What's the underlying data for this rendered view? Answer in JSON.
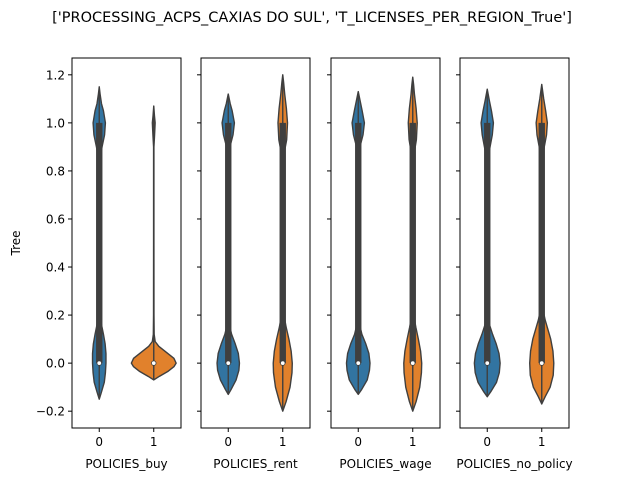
{
  "figure_title": "['PROCESSING_ACPS_CAXIAS DO SUL', 'T_LICENSES_PER_REGION_True']",
  "colors": {
    "class_0": "#3274a1",
    "class_1": "#e1812c",
    "outline": "#3f3f3f"
  },
  "chart_data": {
    "type": "violin",
    "title": "['PROCESSING_ACPS_CAXIAS DO SUL', 'T_LICENSES_PER_REGION_True']",
    "ylabel": "Tree",
    "ylim": [
      -0.27,
      1.27
    ],
    "yticks": [
      -0.2,
      0.0,
      0.2,
      0.4,
      0.6,
      0.8,
      1.0,
      1.2
    ],
    "ytick_labels": [
      "−0.2",
      "0.0",
      "0.2",
      "0.4",
      "0.6",
      "0.8",
      "1.0",
      "1.2"
    ],
    "categories": [
      "0",
      "1"
    ],
    "panels": [
      {
        "xlabel": "POLICIES_buy",
        "violins": [
          {
            "category": "0",
            "min": -0.15,
            "max": 1.15,
            "median": 0.0,
            "q1": 0.0,
            "q3": 1.0,
            "profile": [
              [
                -0.15,
                0.0
              ],
              [
                -0.12,
                0.08
              ],
              [
                -0.08,
                0.18
              ],
              [
                -0.04,
                0.22
              ],
              [
                0.0,
                0.24
              ],
              [
                0.04,
                0.24
              ],
              [
                0.08,
                0.21
              ],
              [
                0.12,
                0.15
              ],
              [
                0.16,
                0.08
              ],
              [
                0.2,
                0.035
              ],
              [
                0.26,
                0.012
              ],
              [
                0.4,
                0.008
              ],
              [
                0.6,
                0.008
              ],
              [
                0.8,
                0.012
              ],
              [
                0.86,
                0.04
              ],
              [
                0.9,
                0.1
              ],
              [
                0.95,
                0.19
              ],
              [
                1.0,
                0.22
              ],
              [
                1.05,
                0.15
              ],
              [
                1.08,
                0.08
              ],
              [
                1.12,
                0.03
              ],
              [
                1.15,
                0.0
              ]
            ]
          },
          {
            "category": "1",
            "min": -0.07,
            "max": 1.07,
            "median": 0.0,
            "q1": 0.0,
            "q3": 0.0,
            "profile": [
              [
                -0.07,
                0.0
              ],
              [
                -0.055,
                0.2
              ],
              [
                -0.035,
                0.5
              ],
              [
                -0.015,
                0.72
              ],
              [
                0.0,
                0.8
              ],
              [
                0.02,
                0.72
              ],
              [
                0.045,
                0.45
              ],
              [
                0.07,
                0.18
              ],
              [
                0.09,
                0.05
              ],
              [
                0.12,
                0.015
              ],
              [
                0.2,
                0.008
              ],
              [
                0.5,
                0.006
              ],
              [
                0.9,
                0.006
              ],
              [
                0.95,
                0.03
              ],
              [
                1.0,
                0.05
              ],
              [
                1.03,
                0.025
              ],
              [
                1.07,
                0.0
              ]
            ]
          }
        ]
      },
      {
        "xlabel": "POLICIES_rent",
        "violins": [
          {
            "category": "0",
            "min": -0.13,
            "max": 1.12,
            "median": 0.0,
            "q1": 0.0,
            "q3": 1.0,
            "profile": [
              [
                -0.13,
                0.0
              ],
              [
                -0.11,
                0.1
              ],
              [
                -0.07,
                0.28
              ],
              [
                -0.03,
                0.38
              ],
              [
                0.0,
                0.4
              ],
              [
                0.04,
                0.36
              ],
              [
                0.08,
                0.25
              ],
              [
                0.12,
                0.12
              ],
              [
                0.16,
                0.04
              ],
              [
                0.2,
                0.015
              ],
              [
                0.3,
                0.008
              ],
              [
                0.6,
                0.008
              ],
              [
                0.85,
                0.015
              ],
              [
                0.9,
                0.06
              ],
              [
                0.95,
                0.17
              ],
              [
                1.0,
                0.22
              ],
              [
                1.05,
                0.14
              ],
              [
                1.08,
                0.07
              ],
              [
                1.12,
                0.0
              ]
            ]
          },
          {
            "category": "1",
            "min": -0.2,
            "max": 1.2,
            "median": 0.0,
            "q1": 0.0,
            "q3": 1.0,
            "profile": [
              [
                -0.2,
                0.0
              ],
              [
                -0.16,
                0.12
              ],
              [
                -0.1,
                0.26
              ],
              [
                -0.04,
                0.33
              ],
              [
                0.0,
                0.34
              ],
              [
                0.05,
                0.3
              ],
              [
                0.1,
                0.22
              ],
              [
                0.15,
                0.12
              ],
              [
                0.19,
                0.06
              ],
              [
                0.24,
                0.03
              ],
              [
                0.35,
                0.02
              ],
              [
                0.6,
                0.02
              ],
              [
                0.8,
                0.025
              ],
              [
                0.88,
                0.06
              ],
              [
                0.93,
                0.14
              ],
              [
                1.0,
                0.17
              ],
              [
                1.06,
                0.13
              ],
              [
                1.12,
                0.07
              ],
              [
                1.17,
                0.03
              ],
              [
                1.2,
                0.0
              ]
            ]
          }
        ]
      },
      {
        "xlabel": "POLICIES_wage",
        "violins": [
          {
            "category": "0",
            "min": -0.13,
            "max": 1.13,
            "median": 0.0,
            "q1": 0.0,
            "q3": 1.0,
            "profile": [
              [
                -0.13,
                0.0
              ],
              [
                -0.11,
                0.12
              ],
              [
                -0.07,
                0.32
              ],
              [
                -0.03,
                0.4
              ],
              [
                0.0,
                0.42
              ],
              [
                0.04,
                0.38
              ],
              [
                0.08,
                0.27
              ],
              [
                0.12,
                0.13
              ],
              [
                0.16,
                0.05
              ],
              [
                0.2,
                0.015
              ],
              [
                0.3,
                0.008
              ],
              [
                0.6,
                0.008
              ],
              [
                0.85,
                0.015
              ],
              [
                0.9,
                0.06
              ],
              [
                0.95,
                0.17
              ],
              [
                1.0,
                0.22
              ],
              [
                1.05,
                0.14
              ],
              [
                1.09,
                0.07
              ],
              [
                1.13,
                0.0
              ]
            ]
          },
          {
            "category": "1",
            "min": -0.2,
            "max": 1.19,
            "median": 0.0,
            "q1": 0.0,
            "q3": 1.0,
            "profile": [
              [
                -0.2,
                0.0
              ],
              [
                -0.16,
                0.12
              ],
              [
                -0.1,
                0.25
              ],
              [
                -0.04,
                0.31
              ],
              [
                0.0,
                0.32
              ],
              [
                0.05,
                0.28
              ],
              [
                0.1,
                0.2
              ],
              [
                0.15,
                0.11
              ],
              [
                0.19,
                0.05
              ],
              [
                0.24,
                0.025
              ],
              [
                0.35,
                0.018
              ],
              [
                0.6,
                0.018
              ],
              [
                0.8,
                0.022
              ],
              [
                0.88,
                0.06
              ],
              [
                0.93,
                0.13
              ],
              [
                1.0,
                0.16
              ],
              [
                1.06,
                0.12
              ],
              [
                1.12,
                0.06
              ],
              [
                1.16,
                0.03
              ],
              [
                1.19,
                0.0
              ]
            ]
          }
        ]
      },
      {
        "xlabel": "POLICIES_no_policy",
        "violins": [
          {
            "category": "0",
            "min": -0.14,
            "max": 1.14,
            "median": 0.0,
            "q1": 0.0,
            "q3": 1.0,
            "profile": [
              [
                -0.14,
                0.0
              ],
              [
                -0.12,
                0.12
              ],
              [
                -0.08,
                0.33
              ],
              [
                -0.04,
                0.43
              ],
              [
                0.0,
                0.46
              ],
              [
                0.04,
                0.42
              ],
              [
                0.08,
                0.32
              ],
              [
                0.12,
                0.19
              ],
              [
                0.16,
                0.08
              ],
              [
                0.2,
                0.03
              ],
              [
                0.26,
                0.012
              ],
              [
                0.5,
                0.008
              ],
              [
                0.8,
                0.012
              ],
              [
                0.86,
                0.04
              ],
              [
                0.9,
                0.1
              ],
              [
                0.95,
                0.18
              ],
              [
                1.0,
                0.22
              ],
              [
                1.05,
                0.15
              ],
              [
                1.09,
                0.08
              ],
              [
                1.14,
                0.0
              ]
            ]
          },
          {
            "category": "1",
            "min": -0.17,
            "max": 1.16,
            "median": 0.0,
            "q1": 0.0,
            "q3": 1.0,
            "profile": [
              [
                -0.17,
                0.0
              ],
              [
                -0.14,
                0.12
              ],
              [
                -0.1,
                0.3
              ],
              [
                -0.05,
                0.41
              ],
              [
                0.0,
                0.43
              ],
              [
                0.05,
                0.4
              ],
              [
                0.1,
                0.32
              ],
              [
                0.14,
                0.22
              ],
              [
                0.18,
                0.12
              ],
              [
                0.22,
                0.05
              ],
              [
                0.28,
                0.015
              ],
              [
                0.5,
                0.008
              ],
              [
                0.8,
                0.012
              ],
              [
                0.86,
                0.04
              ],
              [
                0.9,
                0.09
              ],
              [
                0.95,
                0.17
              ],
              [
                1.0,
                0.2
              ],
              [
                1.05,
                0.14
              ],
              [
                1.1,
                0.07
              ],
              [
                1.16,
                0.0
              ]
            ]
          }
        ]
      }
    ]
  }
}
